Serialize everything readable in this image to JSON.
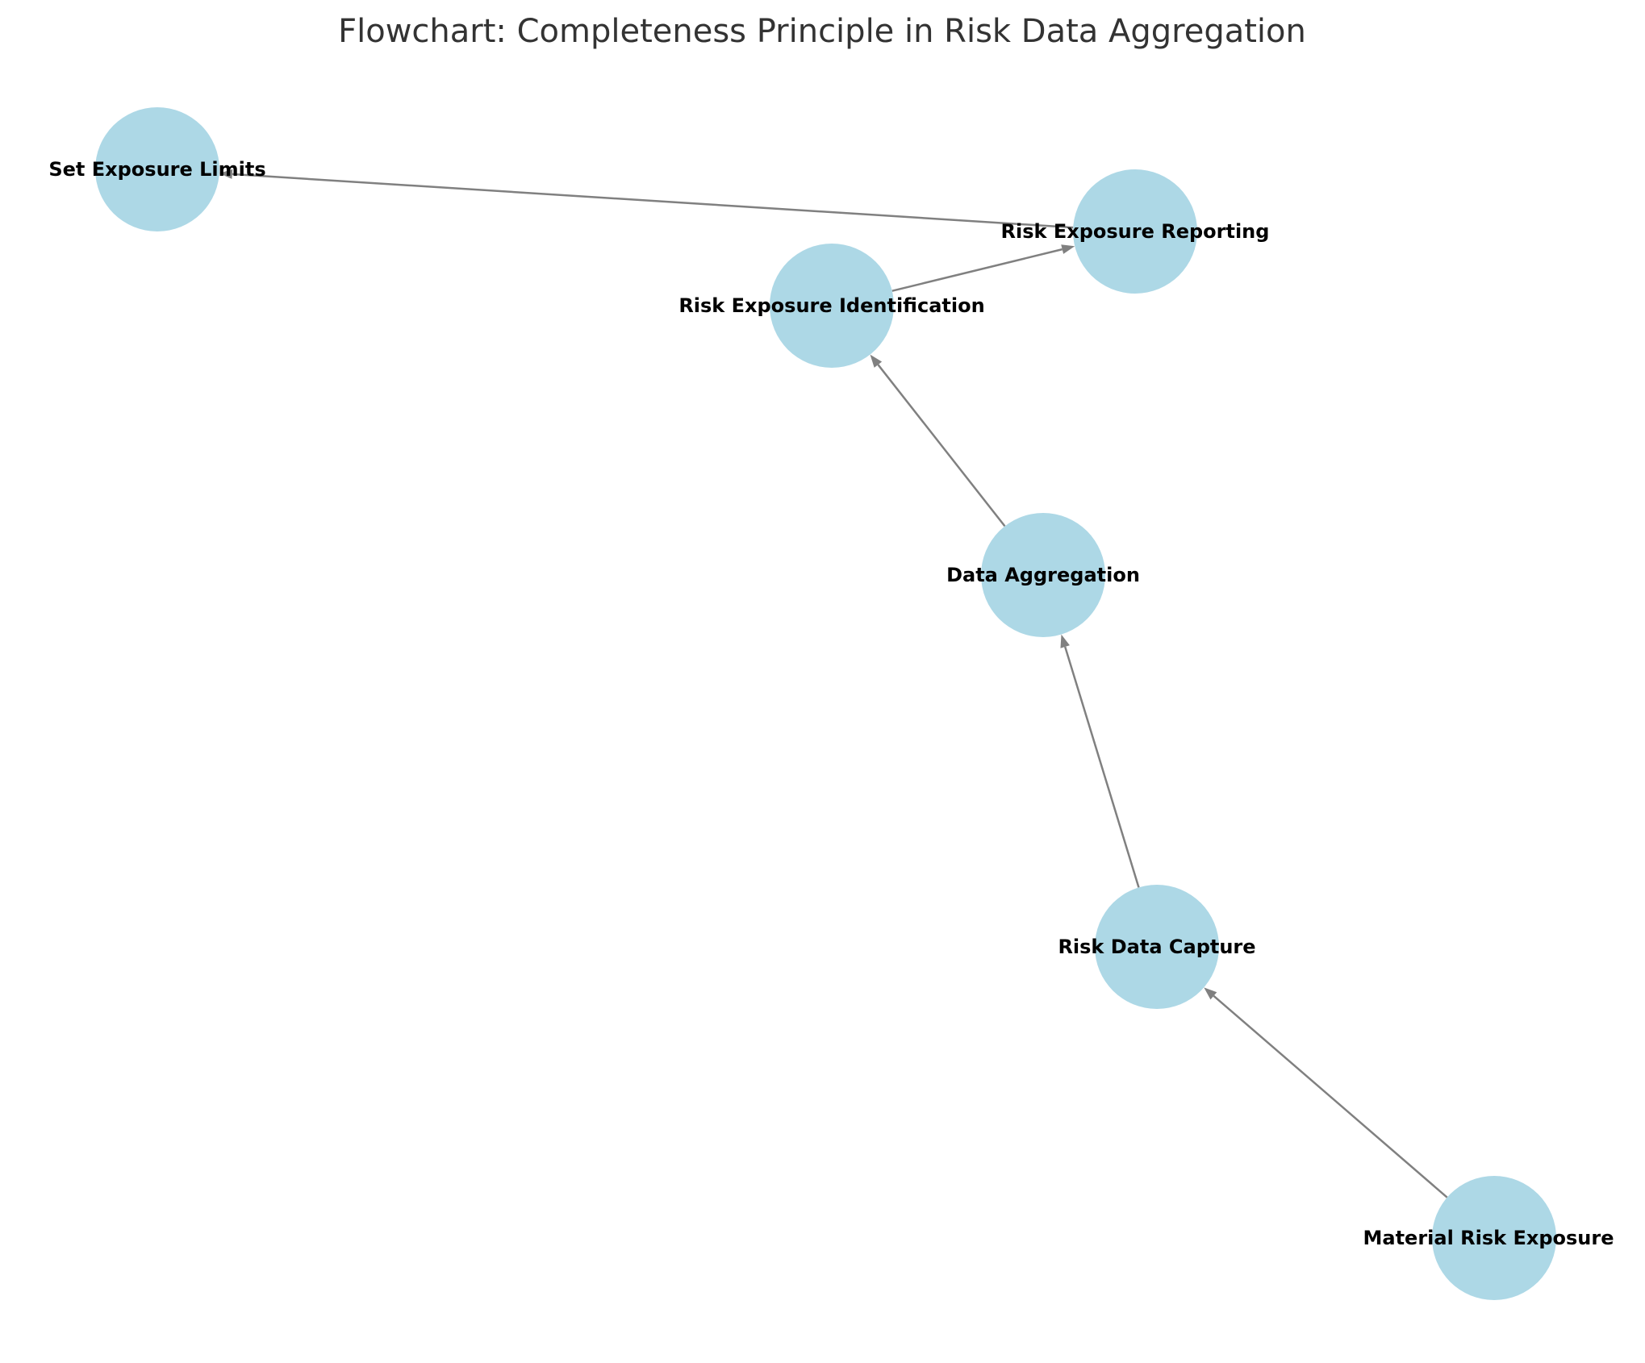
{
  "title": "Flowchart: Completeness Principle in Risk Data Aggregation",
  "colors": {
    "node_fill": "#add8e6",
    "edge": "#808080",
    "title": "#333333",
    "label": "#000000"
  },
  "nodes": [
    {
      "id": "set_limits",
      "label": "Set Exposure Limits"
    },
    {
      "id": "reporting",
      "label": "Risk Exposure Reporting"
    },
    {
      "id": "identification",
      "label": "Risk Exposure Identification"
    },
    {
      "id": "aggregation",
      "label": "Data Aggregation"
    },
    {
      "id": "capture",
      "label": "Risk Data Capture"
    },
    {
      "id": "material",
      "label": "Material Risk Exposure"
    }
  ],
  "edges": [
    {
      "from": "material",
      "to": "capture"
    },
    {
      "from": "capture",
      "to": "aggregation"
    },
    {
      "from": "aggregation",
      "to": "identification"
    },
    {
      "from": "identification",
      "to": "reporting"
    },
    {
      "from": "reporting",
      "to": "set_limits"
    }
  ]
}
